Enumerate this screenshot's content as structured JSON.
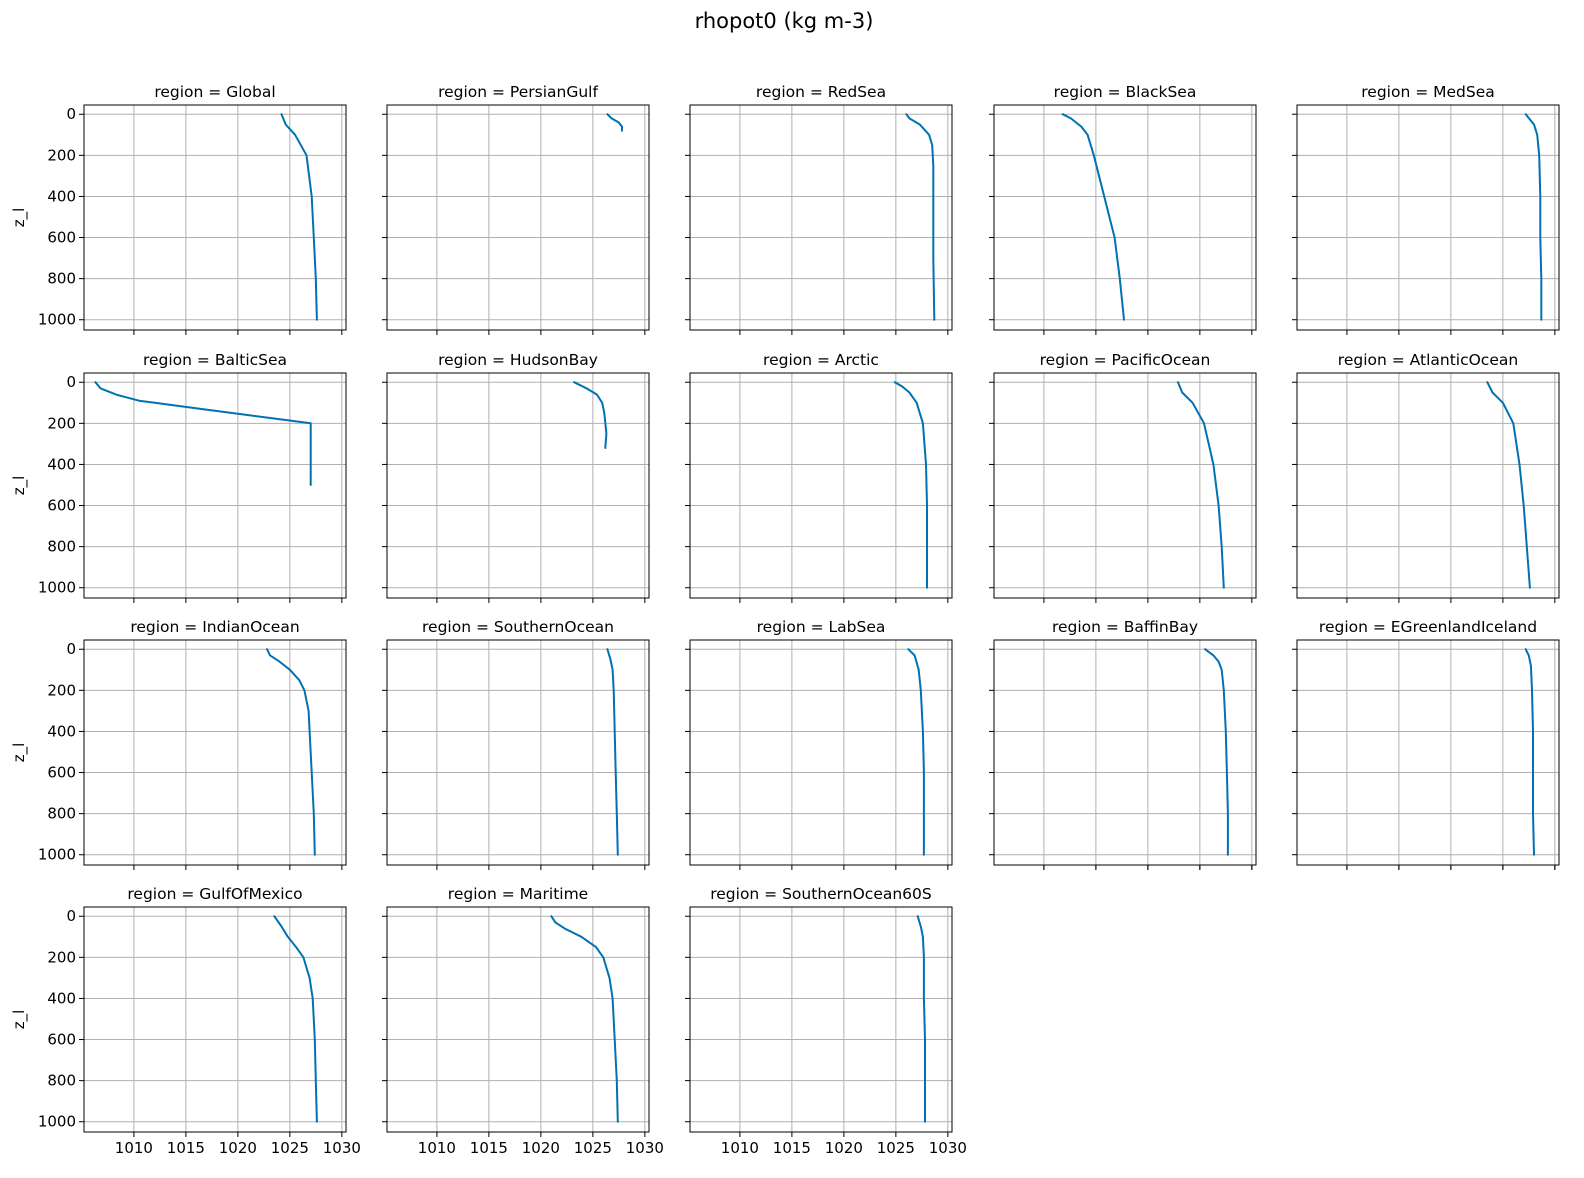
{
  "figure": {
    "title": "rhopot0 (kg m-3)"
  },
  "chart_data": {
    "type": "line",
    "title": "rhopot0 (kg m-3)",
    "layout": "facet-grid 4 rows x 5 cols, shared x and y axes",
    "ylabel": "z_l",
    "xlim": [
      1005.2,
      1030.4
    ],
    "ylim": [
      1050,
      -45
    ],
    "y_inverted": true,
    "xticks": [
      1010,
      1015,
      1020,
      1025,
      1030
    ],
    "yticks": [
      0,
      200,
      400,
      600,
      800,
      1000
    ],
    "grid": true,
    "line_color": "#0072b2",
    "panels": [
      {
        "title": "region = Global",
        "y": [
          0,
          50,
          100,
          200,
          400,
          600,
          800,
          1000
        ],
        "x": [
          1024.2,
          1024.6,
          1025.5,
          1026.6,
          1027.1,
          1027.3,
          1027.5,
          1027.6
        ]
      },
      {
        "title": "region = PersianGulf",
        "y": [
          0,
          20,
          40,
          60,
          80
        ],
        "x": [
          1026.4,
          1026.8,
          1027.5,
          1027.8,
          1027.8
        ]
      },
      {
        "title": "region = RedSea",
        "y": [
          0,
          20,
          50,
          100,
          150,
          250,
          400,
          700,
          1000
        ],
        "x": [
          1026.0,
          1026.3,
          1027.3,
          1028.2,
          1028.5,
          1028.6,
          1028.6,
          1028.6,
          1028.7
        ]
      },
      {
        "title": "region = BlackSea",
        "y": [
          0,
          20,
          60,
          100,
          200,
          400,
          600,
          800,
          1000
        ],
        "x": [
          1011.8,
          1012.6,
          1013.6,
          1014.2,
          1014.8,
          1015.8,
          1016.8,
          1017.3,
          1017.7
        ]
      },
      {
        "title": "region = MedSea",
        "y": [
          0,
          50,
          100,
          200,
          400,
          600,
          800,
          1000
        ],
        "x": [
          1027.2,
          1028.0,
          1028.3,
          1028.5,
          1028.6,
          1028.6,
          1028.7,
          1028.7
        ]
      },
      {
        "title": "region = BalticSea",
        "y": [
          0,
          30,
          60,
          90,
          100,
          130,
          200,
          250,
          500
        ],
        "x": [
          1006.3,
          1006.8,
          1008.3,
          1010.5,
          1012.0,
          1016.5,
          1027.0,
          1027.0,
          1027.0
        ]
      },
      {
        "title": "region = HudsonBay",
        "y": [
          0,
          30,
          60,
          100,
          150,
          250,
          320
        ],
        "x": [
          1023.2,
          1024.4,
          1025.4,
          1025.9,
          1026.1,
          1026.3,
          1026.2
        ]
      },
      {
        "title": "region = Arctic",
        "y": [
          0,
          20,
          50,
          100,
          200,
          400,
          600,
          800,
          1000
        ],
        "x": [
          1024.9,
          1025.6,
          1026.3,
          1027.0,
          1027.6,
          1027.9,
          1028.0,
          1028.0,
          1028.0
        ]
      },
      {
        "title": "region = PacificOcean",
        "y": [
          0,
          50,
          100,
          200,
          400,
          600,
          800,
          1000
        ],
        "x": [
          1022.9,
          1023.3,
          1024.3,
          1025.4,
          1026.3,
          1026.8,
          1027.1,
          1027.3
        ]
      },
      {
        "title": "region = AtlanticOcean",
        "y": [
          0,
          50,
          100,
          200,
          400,
          600,
          800,
          1000
        ],
        "x": [
          1023.5,
          1024.0,
          1025.0,
          1026.0,
          1026.6,
          1027.0,
          1027.3,
          1027.6
        ]
      },
      {
        "title": "region = IndianOcean",
        "y": [
          0,
          30,
          60,
          100,
          150,
          200,
          300,
          400,
          600,
          800,
          1000
        ],
        "x": [
          1022.8,
          1023.1,
          1024.0,
          1025.0,
          1025.9,
          1026.4,
          1026.8,
          1026.9,
          1027.1,
          1027.3,
          1027.4
        ]
      },
      {
        "title": "region = SouthernOcean",
        "y": [
          0,
          50,
          100,
          200,
          400,
          600,
          800,
          1000
        ],
        "x": [
          1026.4,
          1026.7,
          1026.9,
          1027.0,
          1027.1,
          1027.2,
          1027.3,
          1027.4
        ]
      },
      {
        "title": "region = LabSea",
        "y": [
          0,
          30,
          100,
          200,
          400,
          600,
          800,
          1000
        ],
        "x": [
          1026.2,
          1026.8,
          1027.2,
          1027.4,
          1027.6,
          1027.7,
          1027.7,
          1027.7
        ]
      },
      {
        "title": "region = BaffinBay",
        "y": [
          0,
          30,
          60,
          100,
          200,
          400,
          600,
          800,
          1000
        ],
        "x": [
          1025.5,
          1026.3,
          1026.8,
          1027.1,
          1027.3,
          1027.5,
          1027.6,
          1027.7,
          1027.7
        ]
      },
      {
        "title": "region = EGreenlandIceland",
        "y": [
          0,
          30,
          80,
          200,
          400,
          600,
          800,
          1000
        ],
        "x": [
          1027.2,
          1027.5,
          1027.7,
          1027.8,
          1027.9,
          1027.9,
          1027.9,
          1028.0
        ]
      },
      {
        "title": "region = GulfOfMexico",
        "y": [
          0,
          50,
          100,
          150,
          200,
          300,
          400,
          600,
          800,
          1000
        ],
        "x": [
          1023.5,
          1024.2,
          1024.8,
          1025.6,
          1026.3,
          1026.9,
          1027.2,
          1027.4,
          1027.5,
          1027.6
        ]
      },
      {
        "title": "region = Maritime",
        "y": [
          0,
          30,
          60,
          100,
          150,
          200,
          300,
          400,
          600,
          800,
          1000
        ],
        "x": [
          1021.0,
          1021.4,
          1022.3,
          1023.9,
          1025.3,
          1026.0,
          1026.6,
          1026.9,
          1027.1,
          1027.3,
          1027.4
        ]
      },
      {
        "title": "region = SouthernOcean60S",
        "y": [
          0,
          50,
          100,
          200,
          400,
          600,
          800,
          1000
        ],
        "x": [
          1027.1,
          1027.4,
          1027.6,
          1027.7,
          1027.7,
          1027.8,
          1027.8,
          1027.8
        ]
      }
    ]
  }
}
